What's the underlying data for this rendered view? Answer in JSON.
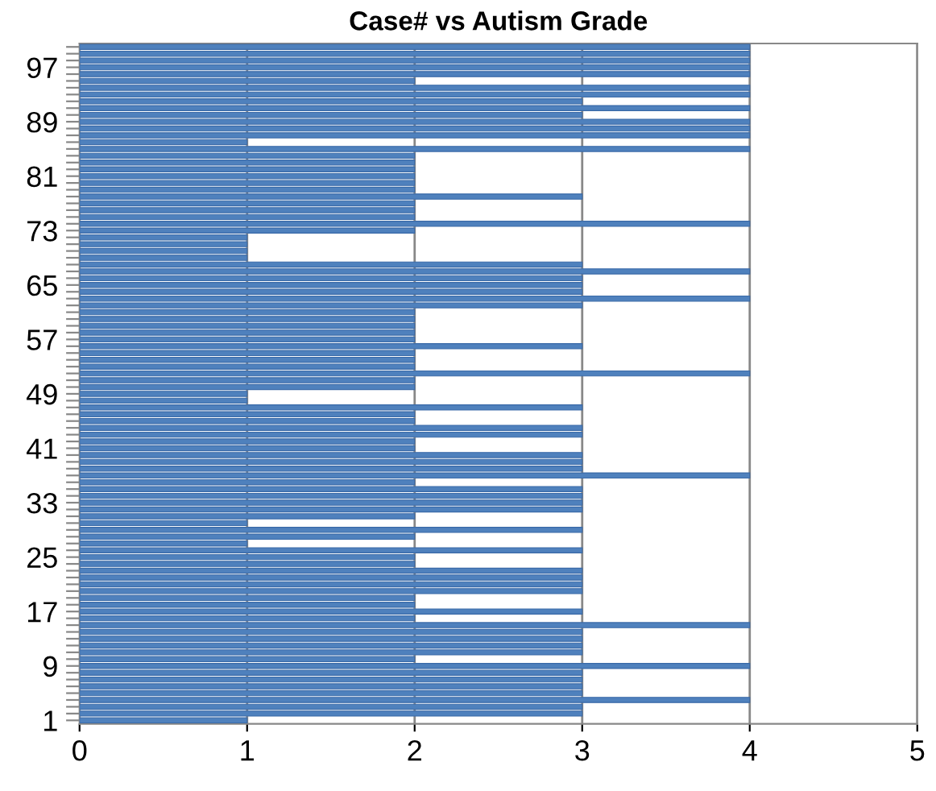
{
  "chart_data": {
    "type": "bar",
    "orientation": "horizontal",
    "title": "Case# vs Autism Grade",
    "categories": [
      null,
      null,
      null,
      "97",
      null,
      null,
      null,
      null,
      null,
      null,
      null,
      "89",
      null,
      null,
      null,
      null,
      null,
      null,
      null,
      "81",
      null,
      null,
      null,
      null,
      null,
      null,
      null,
      "73",
      null,
      null,
      null,
      null,
      null,
      null,
      null,
      "65",
      null,
      null,
      null,
      null,
      null,
      null,
      null,
      "57",
      null,
      null,
      null,
      null,
      null,
      null,
      null,
      "49",
      null,
      null,
      null,
      null,
      null,
      null,
      null,
      "41",
      null,
      null,
      null,
      null,
      null,
      null,
      null,
      "33",
      null,
      null,
      null,
      null,
      null,
      null,
      null,
      "25",
      null,
      null,
      null,
      null,
      null,
      null,
      null,
      "17",
      null,
      null,
      null,
      null,
      null,
      null,
      null,
      "9",
      null,
      null,
      null,
      null,
      null,
      null,
      null,
      "1"
    ],
    "values": [
      4,
      4,
      4,
      4,
      4,
      2,
      4,
      4,
      3,
      4,
      3,
      4,
      4,
      4,
      1,
      4,
      2,
      2,
      2,
      2,
      2,
      2,
      3,
      2,
      2,
      2,
      4,
      2,
      1,
      1,
      1,
      1,
      3,
      4,
      3,
      3,
      3,
      4,
      3,
      2,
      2,
      2,
      2,
      2,
      3,
      2,
      2,
      2,
      4,
      2,
      2,
      1,
      1,
      3,
      2,
      2,
      3,
      3,
      2,
      2,
      3,
      3,
      3,
      4,
      2,
      3,
      3,
      3,
      3,
      2,
      1,
      3,
      2,
      1,
      3,
      2,
      2,
      3,
      3,
      3,
      3,
      2,
      2,
      3,
      2,
      4,
      3,
      3,
      3,
      3,
      2,
      4,
      3,
      3,
      3,
      3,
      4,
      3,
      3,
      1
    ],
    "color": "#4f81bd",
    "xlim": [
      0,
      5
    ],
    "xticks": [
      0,
      1,
      2,
      3,
      4,
      5
    ],
    "grid": "x"
  }
}
